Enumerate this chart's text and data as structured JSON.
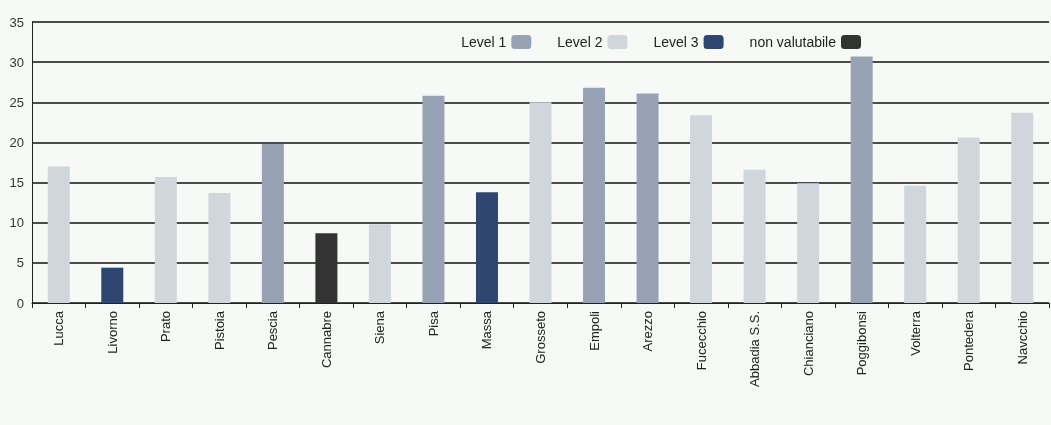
{
  "chart_data": {
    "type": "bar",
    "stacked": true,
    "categories": [
      "Lucca",
      "Livorno",
      "Prato",
      "Pistoia",
      "Pescia",
      "Cannabre",
      "Siena",
      "Pisa",
      "Massa",
      "Grosseto",
      "Empoli",
      "Arezzo",
      "Fucecchio",
      "Abbadia S.S.",
      "Chianciano",
      "Poggibonsi",
      "Volterra",
      "Pontedera",
      "Navcchio"
    ],
    "series": [
      {
        "name": "Level 1",
        "color": "#97a3b4",
        "values": [
          null,
          null,
          null,
          null,
          19.8,
          null,
          null,
          25.8,
          null,
          null,
          26.8,
          26.1,
          null,
          null,
          null,
          30.7,
          null,
          null,
          null
        ]
      },
      {
        "name": "Level 2",
        "color": "#d0d6dc",
        "values": [
          17,
          null,
          15.7,
          13.7,
          null,
          null,
          9.8,
          null,
          null,
          25,
          null,
          null,
          23.4,
          16.6,
          14.9,
          null,
          14.6,
          20.6,
          23.7
        ]
      },
      {
        "name": "Level 3",
        "color": "#2e4670",
        "values": [
          null,
          4.4,
          null,
          null,
          null,
          null,
          null,
          null,
          13.8,
          null,
          null,
          null,
          null,
          null,
          null,
          null,
          null,
          null,
          null
        ]
      },
      {
        "name": "non valutabile",
        "color": "#333333",
        "values": [
          null,
          null,
          null,
          null,
          null,
          8.7,
          null,
          null,
          null,
          null,
          null,
          null,
          null,
          null,
          null,
          null,
          null,
          null,
          null
        ]
      }
    ],
    "ylim": [
      0,
      35
    ],
    "yticks": [
      0,
      5,
      10,
      15,
      20,
      25,
      30,
      35
    ],
    "grid": "y",
    "legend": "top right"
  }
}
